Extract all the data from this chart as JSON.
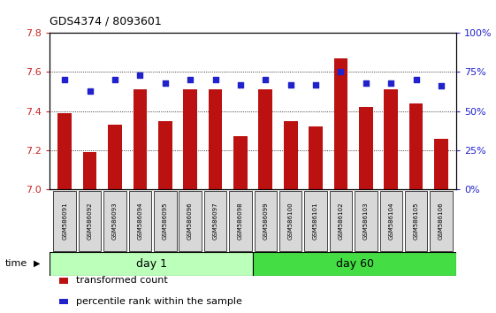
{
  "title": "GDS4374 / 8093601",
  "samples": [
    "GSM586091",
    "GSM586092",
    "GSM586093",
    "GSM586094",
    "GSM586095",
    "GSM586096",
    "GSM586097",
    "GSM586098",
    "GSM586099",
    "GSM586100",
    "GSM586101",
    "GSM586102",
    "GSM586103",
    "GSM586104",
    "GSM586105",
    "GSM586106"
  ],
  "red_values": [
    7.39,
    7.19,
    7.33,
    7.51,
    7.35,
    7.51,
    7.51,
    7.27,
    7.51,
    7.35,
    7.32,
    7.67,
    7.42,
    7.51,
    7.44,
    7.26
  ],
  "blue_values": [
    70,
    63,
    70,
    73,
    68,
    70,
    70,
    67,
    70,
    67,
    67,
    75,
    68,
    68,
    70,
    66
  ],
  "ylim_left": [
    7.0,
    7.8
  ],
  "ylim_right": [
    0,
    100
  ],
  "yticks_left": [
    7.0,
    7.2,
    7.4,
    7.6,
    7.8
  ],
  "yticks_right": [
    0,
    25,
    50,
    75,
    100
  ],
  "bar_color": "#bb1111",
  "dot_color": "#2222cc",
  "day1_color": "#bbffbb",
  "day60_color": "#44dd44",
  "day1_label": "day 1",
  "day60_label": "day 60",
  "day1_samples": 8,
  "day60_samples": 8,
  "time_label": "time",
  "legend_red": "transformed count",
  "legend_blue": "percentile rank within the sample",
  "bar_width": 0.55,
  "fig_width": 5.61,
  "fig_height": 3.54
}
